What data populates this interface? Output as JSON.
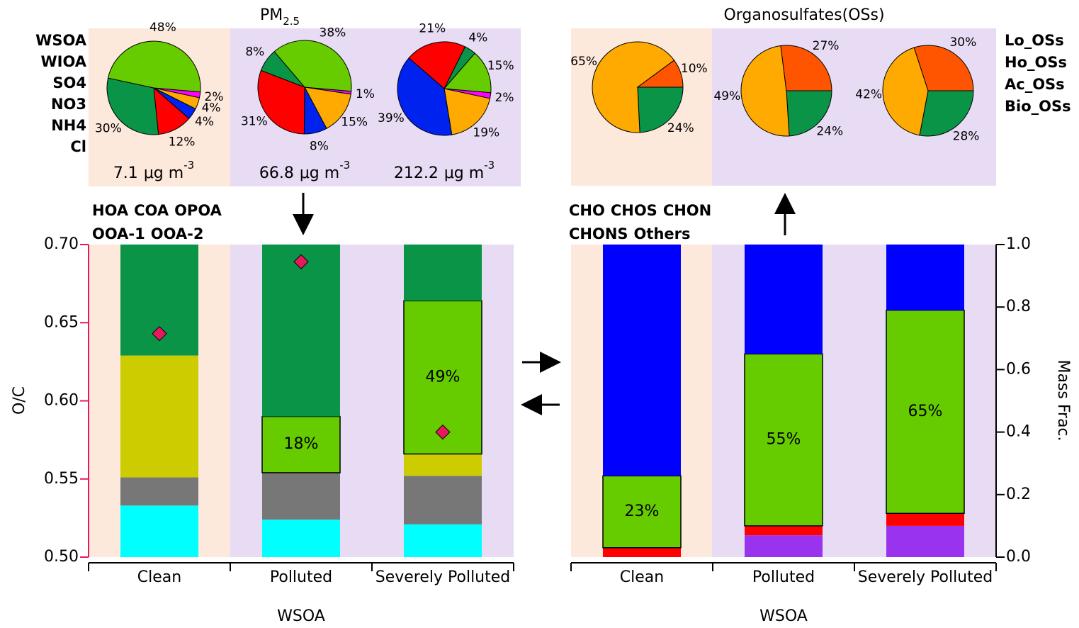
{
  "chart_data": [
    {
      "type": "pie",
      "title": "PM",
      "title_sub": "2.5",
      "categories": [
        "WSOA",
        "WIOA",
        "SO4",
        "NO3",
        "NH4",
        "Cl"
      ],
      "colors": [
        "#66cc00",
        "#0a9447",
        "#ff0000",
        "#0022ee",
        "#ffaa00",
        "#ff00ff"
      ],
      "total_unit": "μg m",
      "total_unit_exp": "-3",
      "pies": [
        {
          "values": [
            48,
            30,
            12,
            4,
            4,
            2
          ],
          "value_labels": [
            "48%",
            "30%",
            "12%",
            "4%",
            "4%",
            "2%"
          ],
          "total": 7.1
        },
        {
          "values": [
            38,
            8,
            31,
            8,
            15,
            1
          ],
          "value_labels": [
            "38%",
            "8%",
            "31%",
            "8%",
            "15%",
            "1%"
          ],
          "total": 66.8
        },
        {
          "values": [
            15,
            4,
            21,
            39,
            19,
            2
          ],
          "value_labels": [
            "15%",
            "4%",
            "21%",
            "39%",
            "19%",
            "2%"
          ],
          "total": 212.2
        }
      ]
    },
    {
      "type": "pie",
      "title": "Organosulfates(OSs)",
      "categories": [
        "Lo_OSs",
        "Ho_OSs",
        "Ac_OSs",
        "Bio_OSs"
      ],
      "colors": [
        "#ff5500",
        "#ffaa00",
        "#0033ff",
        "#0a9447"
      ],
      "pies": [
        {
          "values": [
            10,
            65,
            0,
            24
          ],
          "value_labels": [
            "10%",
            "65%",
            null,
            "24%"
          ]
        },
        {
          "values": [
            27,
            49,
            0,
            24
          ],
          "value_labels": [
            "27%",
            "49%",
            null,
            "24%"
          ]
        },
        {
          "values": [
            30,
            42,
            0,
            28
          ],
          "value_labels": [
            "30%",
            "42%",
            null,
            "28%"
          ]
        }
      ]
    },
    {
      "type": "bar",
      "stacked": true,
      "categories": [
        "Clean",
        "Polluted",
        "Severely Polluted"
      ],
      "xlabel": "WSOA",
      "ylabel": "O/C",
      "axis_color": "#e8185c",
      "ylim": [
        0.5,
        0.7
      ],
      "yticks": [
        {
          "value": 0.5,
          "label": "0.50"
        },
        0.55,
        {
          "value": 0.6,
          "label": "0.60"
        },
        0.65,
        {
          "value": 0.7,
          "label": "0.70"
        }
      ],
      "y2lim": [
        0,
        1
      ],
      "series": [
        {
          "name": "HOA",
          "color": "#777777",
          "axis": "y2",
          "values": [
            0.09,
            0.15,
            0.155
          ]
        },
        {
          "name": "COA",
          "color": "#00ffff",
          "axis": "y2",
          "values": [
            0.165,
            0.12,
            0.105
          ]
        },
        {
          "name": "OPOA",
          "color": "#cccc00",
          "axis": "y2",
          "values": [
            0.39,
            0,
            0.07
          ]
        },
        {
          "name": "OOA-1",
          "color": "#66cc00",
          "axis": "y2",
          "values": [
            0,
            0.18,
            0.49
          ],
          "value_labels": [
            null,
            "18%",
            "49%"
          ]
        },
        {
          "name": "OOA-2",
          "color": "#0a9447",
          "axis": "y2",
          "values": [
            0.355,
            0.55,
            0.18
          ]
        }
      ],
      "oc_values": [
        0.643,
        0.689,
        0.58
      ],
      "oc_color": "#e8185c"
    },
    {
      "type": "bar",
      "stacked": true,
      "categories": [
        "Clean",
        "Polluted",
        "Severely Polluted"
      ],
      "xlabel": "WSOA",
      "ylabel": "Mass Frac.",
      "y_side": "right",
      "ylim": [
        0,
        1
      ],
      "yticks": [
        {
          "value": 0,
          "label": "0.0"
        },
        0.2,
        0.4,
        0.6,
        0.8,
        {
          "value": 1,
          "label": "1.0"
        }
      ],
      "series": [
        {
          "name": "CHO",
          "color": "#0000ff",
          "values": [
            0.74,
            0.35,
            0.21
          ]
        },
        {
          "name": "CHOS",
          "color": "#66cc00",
          "values": [
            0.23,
            0.55,
            0.65
          ],
          "value_labels": [
            "23%",
            "55%",
            "65%"
          ]
        },
        {
          "name": "CHON",
          "color": "#ff0000",
          "values": [
            0.03,
            0.03,
            0.04
          ]
        },
        {
          "name": "CHONS",
          "color": "#9933ee",
          "values": [
            0,
            0.07,
            0.1
          ]
        },
        {
          "name": "Others",
          "color": "#555555",
          "values": [
            0,
            0,
            0
          ]
        }
      ]
    }
  ]
}
